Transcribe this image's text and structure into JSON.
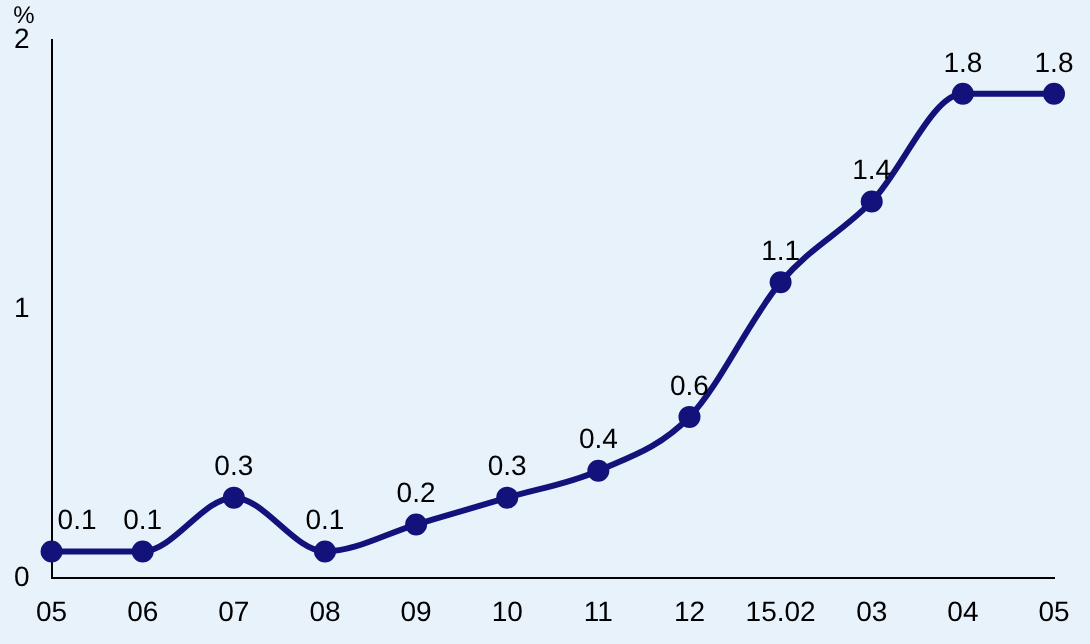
{
  "chart_data": {
    "type": "line",
    "ylabel": "%",
    "categories": [
      "05",
      "06",
      "07",
      "08",
      "09",
      "10",
      "11",
      "12",
      "15.02",
      "03",
      "04",
      "05"
    ],
    "series": [
      {
        "color": "#12127a",
        "values": [
          0.1,
          0.1,
          0.3,
          0.1,
          0.2,
          0.3,
          0.4,
          0.6,
          1.1,
          1.4,
          1.8,
          1.8
        ]
      }
    ],
    "ylim": [
      0,
      2
    ],
    "yticks": [
      0,
      1,
      2
    ],
    "grid": false,
    "legend": false,
    "marker": "circle",
    "line_style": "solid",
    "data_labels": true
  }
}
